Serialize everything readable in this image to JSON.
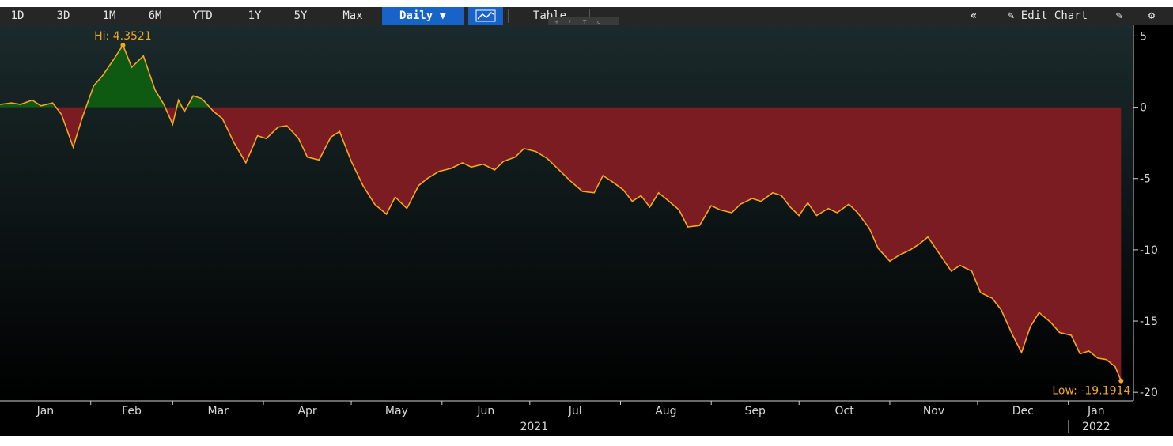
{
  "toolbar": {
    "periods": [
      "1D",
      "3D",
      "1M",
      "6M",
      "YTD",
      "1Y",
      "5Y",
      "Max"
    ],
    "frequency_label": "Daily",
    "table_label": "Table",
    "edit_chart_label": "Edit Chart"
  },
  "colors": {
    "line": "#f5a623",
    "positive_fill": "#0f5a12",
    "negative_fill": "#7a1c22",
    "background_top": "#1b2a2c",
    "background_bottom": "#000000",
    "active_button": "#1763c8"
  },
  "chart_data": {
    "type": "area",
    "x_start": "2021-01-01",
    "x_end": "2022-01-20",
    "ylim": [
      -20.6,
      5.8
    ],
    "y_ticks": [
      5,
      0,
      -5,
      -10,
      -15,
      -20
    ],
    "y_tick_labels": [
      "5",
      "0",
      "-5",
      "-10",
      "-15",
      "-20"
    ],
    "x_month_labels": [
      "Jan",
      "Feb",
      "Mar",
      "Apr",
      "May",
      "Jun",
      "Jul",
      "Aug",
      "Sep",
      "Oct",
      "Nov",
      "Dec",
      "Jan"
    ],
    "x_year_labels": [
      "2021",
      "2022"
    ],
    "baseline": 0,
    "grid": false,
    "annotations": {
      "high": {
        "label": "Hi: 4.3521",
        "date": "2021-02-12",
        "value": 4.3521
      },
      "low": {
        "label": "Low: -19.1914",
        "date": "2022-01-19",
        "value": -19.1914
      }
    },
    "series": [
      {
        "points": [
          [
            "2021-01-01",
            0.2
          ],
          [
            "2021-01-05",
            0.3
          ],
          [
            "2021-01-08",
            0.2
          ],
          [
            "2021-01-12",
            0.5
          ],
          [
            "2021-01-15",
            0.1
          ],
          [
            "2021-01-19",
            0.3
          ],
          [
            "2021-01-22",
            -0.5
          ],
          [
            "2021-01-26",
            -2.8
          ],
          [
            "2021-01-29",
            -0.8
          ],
          [
            "2021-02-02",
            1.5
          ],
          [
            "2021-02-05",
            2.2
          ],
          [
            "2021-02-09",
            3.4
          ],
          [
            "2021-02-12",
            4.3521
          ],
          [
            "2021-02-15",
            2.8
          ],
          [
            "2021-02-19",
            3.6
          ],
          [
            "2021-02-23",
            1.2
          ],
          [
            "2021-02-26",
            0.2
          ],
          [
            "2021-03-01",
            -1.2
          ],
          [
            "2021-03-03",
            0.5
          ],
          [
            "2021-03-05",
            -0.3
          ],
          [
            "2021-03-08",
            0.8
          ],
          [
            "2021-03-11",
            0.6
          ],
          [
            "2021-03-15",
            -0.3
          ],
          [
            "2021-03-18",
            -0.8
          ],
          [
            "2021-03-22",
            -2.5
          ],
          [
            "2021-03-26",
            -3.9
          ],
          [
            "2021-03-30",
            -2.0
          ],
          [
            "2021-04-02",
            -2.2
          ],
          [
            "2021-04-06",
            -1.4
          ],
          [
            "2021-04-09",
            -1.3
          ],
          [
            "2021-04-13",
            -2.2
          ],
          [
            "2021-04-16",
            -3.5
          ],
          [
            "2021-04-20",
            -3.7
          ],
          [
            "2021-04-24",
            -2.1
          ],
          [
            "2021-04-27",
            -1.7
          ],
          [
            "2021-05-01",
            -3.8
          ],
          [
            "2021-05-05",
            -5.5
          ],
          [
            "2021-05-09",
            -6.8
          ],
          [
            "2021-05-13",
            -7.5
          ],
          [
            "2021-05-16",
            -6.3
          ],
          [
            "2021-05-20",
            -7.1
          ],
          [
            "2021-05-24",
            -5.5
          ],
          [
            "2021-05-27",
            -5.0
          ],
          [
            "2021-05-31",
            -4.5
          ],
          [
            "2021-06-04",
            -4.3
          ],
          [
            "2021-06-08",
            -3.9
          ],
          [
            "2021-06-11",
            -4.2
          ],
          [
            "2021-06-15",
            -4.0
          ],
          [
            "2021-06-19",
            -4.4
          ],
          [
            "2021-06-22",
            -3.8
          ],
          [
            "2021-06-26",
            -3.5
          ],
          [
            "2021-06-29",
            -2.9
          ],
          [
            "2021-07-03",
            -3.1
          ],
          [
            "2021-07-07",
            -3.6
          ],
          [
            "2021-07-11",
            -4.4
          ],
          [
            "2021-07-15",
            -5.2
          ],
          [
            "2021-07-19",
            -5.9
          ],
          [
            "2021-07-23",
            -6.0
          ],
          [
            "2021-07-26",
            -4.8
          ],
          [
            "2021-07-29",
            -5.2
          ],
          [
            "2021-08-02",
            -5.8
          ],
          [
            "2021-08-05",
            -6.6
          ],
          [
            "2021-08-08",
            -6.2
          ],
          [
            "2021-08-11",
            -7.0
          ],
          [
            "2021-08-14",
            -6.0
          ],
          [
            "2021-08-17",
            -6.5
          ],
          [
            "2021-08-21",
            -7.2
          ],
          [
            "2021-08-24",
            -8.4
          ],
          [
            "2021-08-28",
            -8.3
          ],
          [
            "2021-09-01",
            -6.9
          ],
          [
            "2021-09-04",
            -7.2
          ],
          [
            "2021-09-08",
            -7.4
          ],
          [
            "2021-09-11",
            -6.8
          ],
          [
            "2021-09-15",
            -6.4
          ],
          [
            "2021-09-18",
            -6.6
          ],
          [
            "2021-09-22",
            -6.0
          ],
          [
            "2021-09-25",
            -6.2
          ],
          [
            "2021-09-28",
            -7.0
          ],
          [
            "2021-10-01",
            -7.6
          ],
          [
            "2021-10-04",
            -6.7
          ],
          [
            "2021-10-07",
            -7.6
          ],
          [
            "2021-10-11",
            -7.1
          ],
          [
            "2021-10-14",
            -7.4
          ],
          [
            "2021-10-18",
            -6.8
          ],
          [
            "2021-10-21",
            -7.4
          ],
          [
            "2021-10-25",
            -8.5
          ],
          [
            "2021-10-28",
            -9.9
          ],
          [
            "2021-11-01",
            -10.8
          ],
          [
            "2021-11-04",
            -10.4
          ],
          [
            "2021-11-08",
            -10.0
          ],
          [
            "2021-11-11",
            -9.6
          ],
          [
            "2021-11-14",
            -9.1
          ],
          [
            "2021-11-18",
            -10.3
          ],
          [
            "2021-11-22",
            -11.5
          ],
          [
            "2021-11-25",
            -11.1
          ],
          [
            "2021-11-29",
            -11.5
          ],
          [
            "2021-12-02",
            -13.0
          ],
          [
            "2021-12-06",
            -13.4
          ],
          [
            "2021-12-09",
            -14.2
          ],
          [
            "2021-12-13",
            -16.0
          ],
          [
            "2021-12-16",
            -17.2
          ],
          [
            "2021-12-19",
            -15.4
          ],
          [
            "2021-12-22",
            -14.4
          ],
          [
            "2021-12-26",
            -15.1
          ],
          [
            "2021-12-29",
            -15.8
          ],
          [
            "2022-01-02",
            -16.0
          ],
          [
            "2022-01-05",
            -17.3
          ],
          [
            "2022-01-08",
            -17.1
          ],
          [
            "2022-01-11",
            -17.6
          ],
          [
            "2022-01-14",
            -17.7
          ],
          [
            "2022-01-17",
            -18.2
          ],
          [
            "2022-01-19",
            -19.1914
          ]
        ]
      }
    ]
  }
}
